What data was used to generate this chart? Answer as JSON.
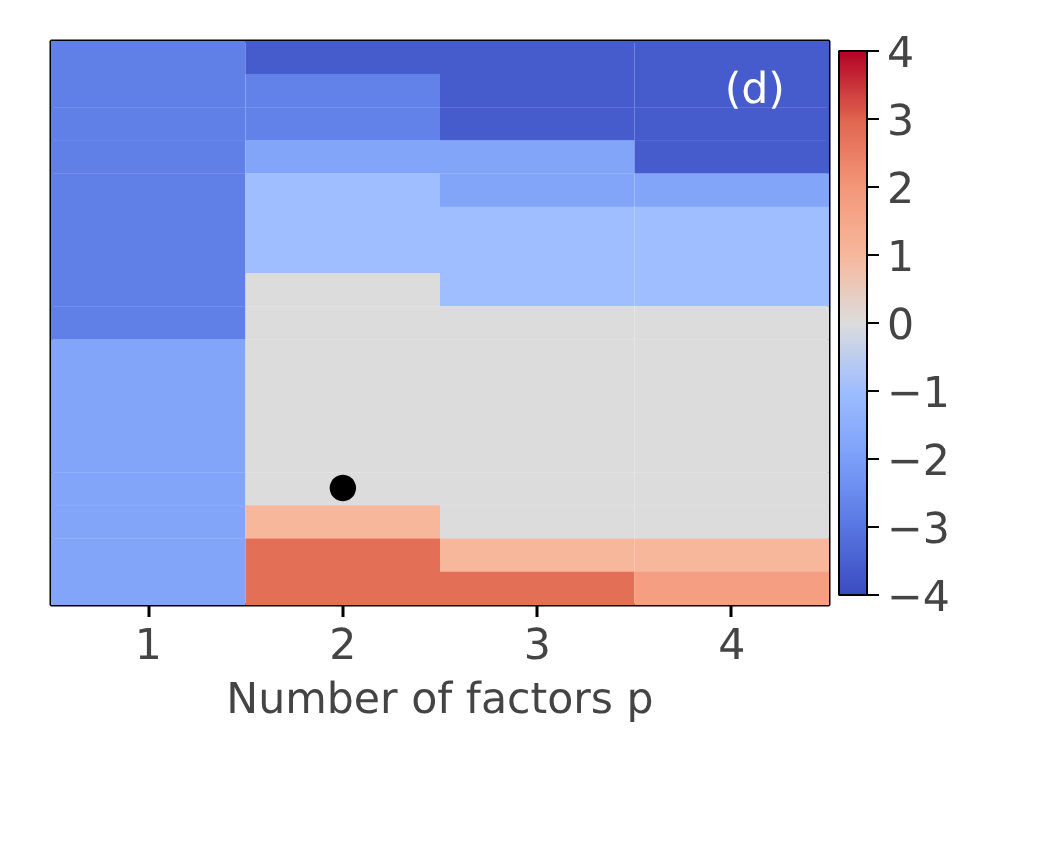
{
  "chart_data": {
    "type": "heatmap",
    "categories": [
      "1",
      "2",
      "3",
      "4"
    ],
    "y_categories": [
      null,
      null,
      null,
      null,
      null,
      null,
      null,
      null,
      null,
      null,
      null,
      null,
      null,
      null,
      null,
      null,
      null
    ],
    "cells": [
      [
        -2.8,
        -3.6,
        -3.6,
        -3.6
      ],
      [
        -2.8,
        -2.7,
        -3.6,
        -3.6
      ],
      [
        -2.8,
        -2.7,
        -3.6,
        -3.6
      ],
      [
        -2.8,
        -1.8,
        -1.8,
        -3.6
      ],
      [
        -2.8,
        -1.0,
        -1.8,
        -1.8
      ],
      [
        -2.8,
        -1.0,
        -1.0,
        -1.0
      ],
      [
        -2.8,
        -1.0,
        -1.0,
        -1.0
      ],
      [
        -2.8,
        0,
        -1.0,
        -1.0
      ],
      [
        -2.8,
        0,
        0,
        0
      ],
      [
        -1.8,
        0,
        0,
        0
      ],
      [
        -1.8,
        0,
        0,
        0
      ],
      [
        -1.8,
        0,
        0,
        0
      ],
      [
        -1.8,
        0,
        0,
        0
      ],
      [
        -1.8,
        0,
        0,
        0
      ],
      [
        -1.8,
        1.0,
        0,
        0
      ],
      [
        -1.8,
        2.8,
        1.0,
        1.0
      ],
      [
        -1.8,
        2.8,
        2.8,
        1.8
      ]
    ],
    "clim": [
      -4,
      4
    ],
    "cticks": [
      {
        "value": -4,
        "label": "−4"
      },
      {
        "value": -3,
        "label": "−3"
      },
      {
        "value": -2,
        "label": "−2"
      },
      {
        "value": -1,
        "label": "−1"
      },
      0,
      1,
      2,
      3,
      4
    ],
    "xlabel": "Number of factors p",
    "annotations": [
      "(d)",
      "●"
    ],
    "tick_labels": "x"
  }
}
